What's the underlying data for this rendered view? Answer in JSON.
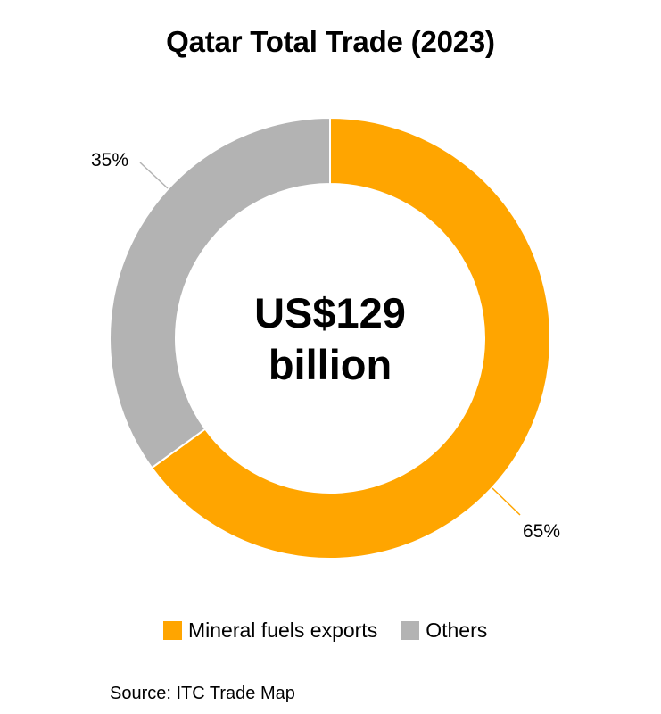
{
  "chart_data": {
    "type": "pie",
    "subtype": "donut",
    "title": "Qatar Total Trade (2023)",
    "center_label": [
      "US$129",
      "billion"
    ],
    "categories": [
      "Mineral fuels exports",
      "Others"
    ],
    "values": [
      65,
      35
    ],
    "unit": "%",
    "data_labels": [
      "65%",
      "35%"
    ],
    "colors": [
      "#FFA500",
      "#B3B3B3"
    ],
    "total": "US$129 billion",
    "legend_position": "bottom",
    "source": "Source: ITC Trade Map"
  },
  "title": "Qatar Total Trade (2023)",
  "center": {
    "line1": "US$129",
    "line2": "billion"
  },
  "labels": {
    "fuels": "65%",
    "others": "35%"
  },
  "legend": [
    {
      "label": "Mineral fuels exports",
      "color": "#FFA500"
    },
    {
      "label": "Others",
      "color": "#B3B3B3"
    }
  ],
  "source": "Source: ITC Trade Map"
}
